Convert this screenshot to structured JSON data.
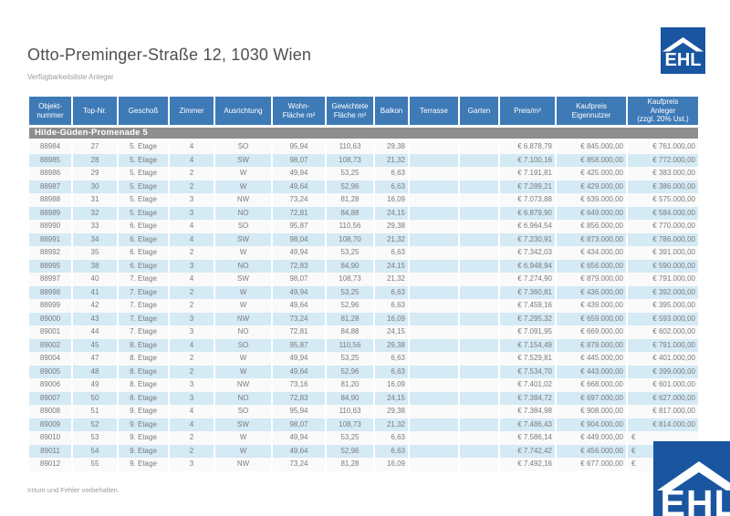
{
  "page": {
    "title": "Otto-Preminger-Straße 12, 1030 Wien",
    "subtitle": "Verfügbarkeitsliste Anleger",
    "footer_note": "Irrtum und Fehler vorbehalten."
  },
  "brand": {
    "logo_text": "EHL"
  },
  "colors": {
    "header_blue": "#3e7ab6",
    "section_band_gray": "#8e8e8e",
    "row_stripe_blue": "#d4eaf5",
    "row_stripe_white": "#fafafa",
    "logo_blue": "#1a55a0",
    "body_text_gray": "#7b7b7b"
  },
  "table": {
    "section": "Hilde-Güden-Promenade 5",
    "columns": [
      "Objekt-\nnummer",
      "Top-Nr.",
      "Geschoß",
      "Zimmer",
      "Ausrichtung",
      "Wohn-\nFläche m²",
      "Gewichtete\nFläche m²",
      "Balkon",
      "Terrasse",
      "Garten",
      "Preis/m²",
      "Kaufpreis\nEigennutzer",
      "Kaufpreis\nAnleger\n(zzgl. 20% Ust.)"
    ],
    "rows": [
      [
        "88984",
        "27",
        "5. Etage",
        "4",
        "SO",
        "95,94",
        "110,63",
        "29,38",
        "",
        "",
        "€ 6.878,79",
        "€ 845.000,00",
        "€ 761.000,00"
      ],
      [
        "88985",
        "28",
        "5. Etage",
        "4",
        "SW",
        "98,07",
        "108,73",
        "21,32",
        "",
        "",
        "€ 7.100,16",
        "€ 858.000,00",
        "€ 772.000,00"
      ],
      [
        "88986",
        "29",
        "5. Etage",
        "2",
        "W",
        "49,94",
        "53,25",
        "6,63",
        "",
        "",
        "€ 7.191,81",
        "€ 425.000,00",
        "€ 383.000,00"
      ],
      [
        "88987",
        "30",
        "5. Etage",
        "2",
        "W",
        "49,64",
        "52,96",
        "6,63",
        "",
        "",
        "€ 7.289,21",
        "€ 429.000,00",
        "€ 386.000,00"
      ],
      [
        "88988",
        "31",
        "5. Etage",
        "3",
        "NW",
        "73,24",
        "81,28",
        "16,09",
        "",
        "",
        "€ 7.073,88",
        "€ 639.000,00",
        "€ 575.000,00"
      ],
      [
        "88989",
        "32",
        "5. Etage",
        "3",
        "NO",
        "72,81",
        "84,88",
        "24,15",
        "",
        "",
        "€ 6.879,90",
        "€ 649.000,00",
        "€ 584.000,00"
      ],
      [
        "88990",
        "33",
        "6. Etage",
        "4",
        "SO",
        "95,87",
        "110,56",
        "29,38",
        "",
        "",
        "€ 6.964,54",
        "€ 856.000,00",
        "€ 770.000,00"
      ],
      [
        "88991",
        "34",
        "6. Etage",
        "4",
        "SW",
        "98,04",
        "108,70",
        "21,32",
        "",
        "",
        "€ 7.230,91",
        "€ 873.000,00",
        "€ 786.000,00"
      ],
      [
        "88992",
        "35",
        "6. Etage",
        "2",
        "W",
        "49,94",
        "53,25",
        "6,63",
        "",
        "",
        "€ 7.342,03",
        "€ 434.000,00",
        "€ 391.000,00"
      ],
      [
        "88995",
        "38",
        "6. Etage",
        "3",
        "NO",
        "72,83",
        "84,90",
        "24,15",
        "",
        "",
        "€ 6.948,94",
        "€ 656.000,00",
        "€ 590.000,00"
      ],
      [
        "88997",
        "40",
        "7. Etage",
        "4",
        "SW",
        "98,07",
        "108,73",
        "21,32",
        "",
        "",
        "€ 7.274,90",
        "€ 879.000,00",
        "€ 791.000,00"
      ],
      [
        "88998",
        "41",
        "7. Etage",
        "2",
        "W",
        "49,94",
        "53,25",
        "6,63",
        "",
        "",
        "€ 7.360,81",
        "€ 436.000,00",
        "€ 392.000,00"
      ],
      [
        "88999",
        "42",
        "7. Etage",
        "2",
        "W",
        "49,64",
        "52,96",
        "6,63",
        "",
        "",
        "€ 7.459,16",
        "€ 439.000,00",
        "€ 395.000,00"
      ],
      [
        "89000",
        "43",
        "7. Etage",
        "3",
        "NW",
        "73,24",
        "81,28",
        "16,09",
        "",
        "",
        "€ 7.295,32",
        "€ 659.000,00",
        "€ 593.000,00"
      ],
      [
        "89001",
        "44",
        "7. Etage",
        "3",
        "NO",
        "72,81",
        "84,88",
        "24,15",
        "",
        "",
        "€ 7.091,95",
        "€ 669.000,00",
        "€ 602.000,00"
      ],
      [
        "89002",
        "45",
        "8. Etage",
        "4",
        "SO",
        "95,87",
        "110,56",
        "29,38",
        "",
        "",
        "€ 7.154,49",
        "€ 879.000,00",
        "€ 791.000,00"
      ],
      [
        "89004",
        "47",
        "8. Etage",
        "2",
        "W",
        "49,94",
        "53,25",
        "6,63",
        "",
        "",
        "€ 7.529,81",
        "€ 445.000,00",
        "€ 401.000,00"
      ],
      [
        "89005",
        "48",
        "8. Etage",
        "2",
        "W",
        "49,64",
        "52,96",
        "6,63",
        "",
        "",
        "€ 7.534,70",
        "€ 443.000,00",
        "€ 399.000,00"
      ],
      [
        "89006",
        "49",
        "8. Etage",
        "3",
        "NW",
        "73,16",
        "81,20",
        "16,09",
        "",
        "",
        "€ 7.401,02",
        "€ 668.000,00",
        "€ 601.000,00"
      ],
      [
        "89007",
        "50",
        "8. Etage",
        "3",
        "NO",
        "72,83",
        "84,90",
        "24,15",
        "",
        "",
        "€ 7.384,72",
        "€ 697.000,00",
        "€ 627.000,00"
      ],
      [
        "89008",
        "51",
        "9. Etage",
        "4",
        "SO",
        "95,94",
        "110,63",
        "29,38",
        "",
        "",
        "€ 7.384,98",
        "€ 908.000,00",
        "€ 817.000,00"
      ],
      [
        "89009",
        "52",
        "9. Etage",
        "4",
        "SW",
        "98,07",
        "108,73",
        "21,32",
        "",
        "",
        "€ 7.486,43",
        "€ 904.000,00",
        "€ 814.000,00"
      ],
      [
        "89010",
        "53",
        "9. Etage",
        "2",
        "W",
        "49,94",
        "53,25",
        "6,63",
        "",
        "",
        "€ 7.586,14",
        "€ 449.000,00",
        "€"
      ],
      [
        "89011",
        "54",
        "9. Etage",
        "2",
        "W",
        "49,64",
        "52,96",
        "6,63",
        "",
        "",
        "€ 7.742,42",
        "€ 456.000,00",
        "€"
      ],
      [
        "89012",
        "55",
        "9. Etage",
        "3",
        "NW",
        "73,24",
        "81,28",
        "16,09",
        "",
        "",
        "€ 7.492,16",
        "€ 677.000,00",
        "€"
      ]
    ]
  }
}
